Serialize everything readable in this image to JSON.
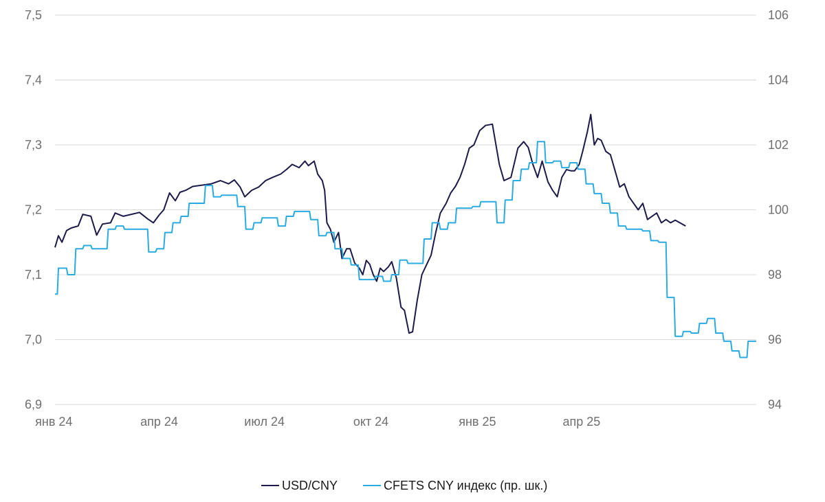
{
  "chart_data": {
    "type": "line",
    "y_left": {
      "ticks": [
        "7,5",
        "7,4",
        "7,3",
        "7,2",
        "7,1",
        "7,0",
        "6,9"
      ],
      "min": 6.9,
      "max": 7.5
    },
    "y_right": {
      "ticks": [
        "106",
        "104",
        "102",
        "100",
        "98",
        "96",
        "94"
      ],
      "min": 94,
      "max": 106
    },
    "x_ticks": [
      "янв 24",
      "апр 24",
      "июл 24",
      "окт 24",
      "янв 25",
      "апр 25"
    ],
    "x_tick_dates": [
      "2024-01-01",
      "2024-04-01",
      "2024-07-01",
      "2024-10-01",
      "2025-01-01",
      "2025-04-01"
    ],
    "grid": true,
    "legend_position": "bottom",
    "series": [
      {
        "name": "USD/CNY",
        "axis": "left",
        "color": "#1b1a48",
        "points": [
          [
            "2024-01-02",
            7.142
          ],
          [
            "2024-01-05",
            7.16
          ],
          [
            "2024-01-08",
            7.15
          ],
          [
            "2024-01-12",
            7.168
          ],
          [
            "2024-01-16",
            7.172
          ],
          [
            "2024-01-22",
            7.175
          ],
          [
            "2024-01-26",
            7.193
          ],
          [
            "2024-02-02",
            7.19
          ],
          [
            "2024-02-07",
            7.161
          ],
          [
            "2024-02-12",
            7.178
          ],
          [
            "2024-02-19",
            7.18
          ],
          [
            "2024-02-23",
            7.195
          ],
          [
            "2024-03-01",
            7.19
          ],
          [
            "2024-03-08",
            7.193
          ],
          [
            "2024-03-15",
            7.196
          ],
          [
            "2024-03-22",
            7.186
          ],
          [
            "2024-03-27",
            7.18
          ],
          [
            "2024-04-01",
            7.192
          ],
          [
            "2024-04-05",
            7.2
          ],
          [
            "2024-04-10",
            7.226
          ],
          [
            "2024-04-15",
            7.214
          ],
          [
            "2024-04-19",
            7.227
          ],
          [
            "2024-04-24",
            7.23
          ],
          [
            "2024-04-30",
            7.236
          ],
          [
            "2024-05-08",
            7.238
          ],
          [
            "2024-05-16",
            7.24
          ],
          [
            "2024-05-24",
            7.245
          ],
          [
            "2024-05-31",
            7.24
          ],
          [
            "2024-06-05",
            7.246
          ],
          [
            "2024-06-10",
            7.235
          ],
          [
            "2024-06-14",
            7.22
          ],
          [
            "2024-06-20",
            7.23
          ],
          [
            "2024-06-26",
            7.235
          ],
          [
            "2024-07-02",
            7.245
          ],
          [
            "2024-07-08",
            7.25
          ],
          [
            "2024-07-15",
            7.255
          ],
          [
            "2024-07-20",
            7.262
          ],
          [
            "2024-07-25",
            7.27
          ],
          [
            "2024-07-31",
            7.265
          ],
          [
            "2024-08-05",
            7.275
          ],
          [
            "2024-08-08",
            7.268
          ],
          [
            "2024-08-13",
            7.275
          ],
          [
            "2024-08-16",
            7.255
          ],
          [
            "2024-08-20",
            7.245
          ],
          [
            "2024-08-22",
            7.23
          ],
          [
            "2024-08-24",
            7.18
          ],
          [
            "2024-08-27",
            7.17
          ],
          [
            "2024-08-30",
            7.15
          ],
          [
            "2024-09-03",
            7.165
          ],
          [
            "2024-09-06",
            7.125
          ],
          [
            "2024-09-10",
            7.14
          ],
          [
            "2024-09-13",
            7.14
          ],
          [
            "2024-09-17",
            7.118
          ],
          [
            "2024-09-21",
            7.11
          ],
          [
            "2024-09-24",
            7.1
          ],
          [
            "2024-09-27",
            7.122
          ],
          [
            "2024-09-30",
            7.116
          ],
          [
            "2024-10-03",
            7.1
          ],
          [
            "2024-10-06",
            7.09
          ],
          [
            "2024-10-09",
            7.11
          ],
          [
            "2024-10-12",
            7.105
          ],
          [
            "2024-10-16",
            7.112
          ],
          [
            "2024-10-19",
            7.12
          ],
          [
            "2024-10-23",
            7.095
          ],
          [
            "2024-10-27",
            7.05
          ],
          [
            "2024-10-30",
            7.045
          ],
          [
            "2024-11-03",
            7.01
          ],
          [
            "2024-11-06",
            7.012
          ],
          [
            "2024-11-10",
            7.06
          ],
          [
            "2024-11-14",
            7.1
          ],
          [
            "2024-11-18",
            7.115
          ],
          [
            "2024-11-22",
            7.13
          ],
          [
            "2024-11-26",
            7.165
          ],
          [
            "2024-11-30",
            7.195
          ],
          [
            "2024-12-05",
            7.21
          ],
          [
            "2024-12-09",
            7.226
          ],
          [
            "2024-12-13",
            7.236
          ],
          [
            "2024-12-17",
            7.25
          ],
          [
            "2024-12-21",
            7.27
          ],
          [
            "2024-12-25",
            7.295
          ],
          [
            "2024-12-29",
            7.3
          ],
          [
            "2025-01-03",
            7.322
          ],
          [
            "2025-01-08",
            7.33
          ],
          [
            "2025-01-14",
            7.332
          ],
          [
            "2025-01-20",
            7.27
          ],
          [
            "2025-01-24",
            7.245
          ],
          [
            "2025-01-30",
            7.25
          ],
          [
            "2025-02-05",
            7.295
          ],
          [
            "2025-02-10",
            7.305
          ],
          [
            "2025-02-14",
            7.296
          ],
          [
            "2025-02-18",
            7.27
          ],
          [
            "2025-02-22",
            7.25
          ],
          [
            "2025-02-26",
            7.275
          ],
          [
            "2025-03-03",
            7.243
          ],
          [
            "2025-03-07",
            7.23
          ],
          [
            "2025-03-11",
            7.22
          ],
          [
            "2025-03-15",
            7.25
          ],
          [
            "2025-03-19",
            7.262
          ],
          [
            "2025-03-23",
            7.26
          ],
          [
            "2025-03-26",
            7.26
          ],
          [
            "2025-03-30",
            7.27
          ],
          [
            "2025-04-02",
            7.29
          ],
          [
            "2025-04-06",
            7.32
          ],
          [
            "2025-04-09",
            7.347
          ],
          [
            "2025-04-12",
            7.3
          ],
          [
            "2025-04-15",
            7.31
          ],
          [
            "2025-04-18",
            7.307
          ],
          [
            "2025-04-22",
            7.29
          ],
          [
            "2025-04-26",
            7.285
          ],
          [
            "2025-04-30",
            7.26
          ],
          [
            "2025-05-04",
            7.235
          ],
          [
            "2025-05-08",
            7.24
          ],
          [
            "2025-05-12",
            7.22
          ],
          [
            "2025-05-16",
            7.21
          ],
          [
            "2025-05-20",
            7.2
          ],
          [
            "2025-05-24",
            7.21
          ],
          [
            "2025-05-28",
            7.185
          ],
          [
            "2025-06-01",
            7.19
          ],
          [
            "2025-06-05",
            7.195
          ],
          [
            "2025-06-09",
            7.18
          ],
          [
            "2025-06-13",
            7.185
          ],
          [
            "2025-06-17",
            7.18
          ],
          [
            "2025-06-21",
            7.184
          ],
          [
            "2025-06-25",
            7.18
          ],
          [
            "2025-06-30",
            7.175
          ]
        ]
      },
      {
        "name": "CFETS CNY индекс (пр. шк.)",
        "axis": "right",
        "color": "#29abe2",
        "points": [
          [
            "2024-01-02",
            97.4
          ],
          [
            "2024-01-04",
            97.4
          ],
          [
            "2024-01-05",
            98.2
          ],
          [
            "2024-01-12",
            98.2
          ],
          [
            "2024-01-13",
            98.0
          ],
          [
            "2024-01-19",
            98.0
          ],
          [
            "2024-01-20",
            98.8
          ],
          [
            "2024-01-26",
            98.8
          ],
          [
            "2024-01-27",
            98.9
          ],
          [
            "2024-02-02",
            98.9
          ],
          [
            "2024-02-03",
            98.8
          ],
          [
            "2024-02-16",
            98.8
          ],
          [
            "2024-02-17",
            99.4
          ],
          [
            "2024-02-23",
            99.4
          ],
          [
            "2024-02-24",
            99.5
          ],
          [
            "2024-03-01",
            99.5
          ],
          [
            "2024-03-02",
            99.4
          ],
          [
            "2024-03-22",
            99.4
          ],
          [
            "2024-03-23",
            98.7
          ],
          [
            "2024-03-29",
            98.7
          ],
          [
            "2024-03-30",
            98.8
          ],
          [
            "2024-04-05",
            98.8
          ],
          [
            "2024-04-06",
            99.3
          ],
          [
            "2024-04-12",
            99.3
          ],
          [
            "2024-04-13",
            99.6
          ],
          [
            "2024-04-19",
            99.6
          ],
          [
            "2024-04-20",
            99.8
          ],
          [
            "2024-04-26",
            99.8
          ],
          [
            "2024-04-27",
            100.2
          ],
          [
            "2024-05-10",
            100.2
          ],
          [
            "2024-05-11",
            100.75
          ],
          [
            "2024-05-17",
            100.75
          ],
          [
            "2024-05-18",
            100.4
          ],
          [
            "2024-05-24",
            100.4
          ],
          [
            "2024-05-25",
            100.45
          ],
          [
            "2024-06-07",
            100.45
          ],
          [
            "2024-06-08",
            100.1
          ],
          [
            "2024-06-14",
            100.1
          ],
          [
            "2024-06-15",
            99.4
          ],
          [
            "2024-06-21",
            99.4
          ],
          [
            "2024-06-22",
            99.6
          ],
          [
            "2024-06-28",
            99.6
          ],
          [
            "2024-06-29",
            99.75
          ],
          [
            "2024-07-12",
            99.75
          ],
          [
            "2024-07-13",
            99.5
          ],
          [
            "2024-07-19",
            99.5
          ],
          [
            "2024-07-20",
            99.8
          ],
          [
            "2024-07-26",
            99.8
          ],
          [
            "2024-07-27",
            99.95
          ],
          [
            "2024-08-09",
            99.95
          ],
          [
            "2024-08-10",
            99.7
          ],
          [
            "2024-08-16",
            99.7
          ],
          [
            "2024-08-17",
            99.2
          ],
          [
            "2024-08-23",
            99.2
          ],
          [
            "2024-08-24",
            99.3
          ],
          [
            "2024-08-30",
            99.3
          ],
          [
            "2024-08-31",
            98.8
          ],
          [
            "2024-09-06",
            98.8
          ],
          [
            "2024-09-07",
            98.5
          ],
          [
            "2024-09-13",
            98.5
          ],
          [
            "2024-09-14",
            98.3
          ],
          [
            "2024-09-20",
            98.3
          ],
          [
            "2024-09-21",
            97.85
          ],
          [
            "2024-10-04",
            97.85
          ],
          [
            "2024-10-05",
            97.95
          ],
          [
            "2024-10-11",
            97.95
          ],
          [
            "2024-10-12",
            97.8
          ],
          [
            "2024-10-18",
            97.8
          ],
          [
            "2024-10-19",
            98.0
          ],
          [
            "2024-10-25",
            98.0
          ],
          [
            "2024-10-26",
            98.45
          ],
          [
            "2024-11-01",
            98.45
          ],
          [
            "2024-11-02",
            98.35
          ],
          [
            "2024-11-15",
            98.35
          ],
          [
            "2024-11-16",
            99.1
          ],
          [
            "2024-11-22",
            99.1
          ],
          [
            "2024-11-23",
            99.6
          ],
          [
            "2024-11-29",
            99.6
          ],
          [
            "2024-11-30",
            99.4
          ],
          [
            "2024-12-06",
            99.4
          ],
          [
            "2024-12-07",
            99.6
          ],
          [
            "2024-12-13",
            99.6
          ],
          [
            "2024-12-14",
            100.05
          ],
          [
            "2024-12-27",
            100.05
          ],
          [
            "2024-12-28",
            100.1
          ],
          [
            "2025-01-03",
            100.1
          ],
          [
            "2025-01-04",
            100.25
          ],
          [
            "2025-01-17",
            100.25
          ],
          [
            "2025-01-18",
            99.6
          ],
          [
            "2025-01-24",
            99.6
          ],
          [
            "2025-01-25",
            100.3
          ],
          [
            "2025-01-31",
            100.3
          ],
          [
            "2025-02-01",
            100.9
          ],
          [
            "2025-02-07",
            100.9
          ],
          [
            "2025-02-08",
            101.25
          ],
          [
            "2025-02-14",
            101.25
          ],
          [
            "2025-02-15",
            101.45
          ],
          [
            "2025-02-21",
            101.45
          ],
          [
            "2025-02-22",
            102.1
          ],
          [
            "2025-02-28",
            102.1
          ],
          [
            "2025-03-01",
            101.45
          ],
          [
            "2025-03-07",
            101.45
          ],
          [
            "2025-03-08",
            101.5
          ],
          [
            "2025-03-14",
            101.5
          ],
          [
            "2025-03-15",
            101.3
          ],
          [
            "2025-03-21",
            101.3
          ],
          [
            "2025-03-22",
            101.45
          ],
          [
            "2025-03-28",
            101.45
          ],
          [
            "2025-03-29",
            101.25
          ],
          [
            "2025-04-04",
            101.25
          ],
          [
            "2025-04-05",
            100.8
          ],
          [
            "2025-04-11",
            100.8
          ],
          [
            "2025-04-12",
            100.5
          ],
          [
            "2025-04-18",
            100.5
          ],
          [
            "2025-04-19",
            100.2
          ],
          [
            "2025-04-25",
            100.2
          ],
          [
            "2025-04-26",
            99.9
          ],
          [
            "2025-05-02",
            99.9
          ],
          [
            "2025-05-03",
            99.5
          ],
          [
            "2025-05-09",
            99.5
          ],
          [
            "2025-05-10",
            99.4
          ],
          [
            "2025-05-23",
            99.4
          ],
          [
            "2025-05-24",
            99.35
          ],
          [
            "2025-05-30",
            99.35
          ],
          [
            "2025-05-31",
            99.05
          ],
          [
            "2025-06-06",
            99.05
          ],
          [
            "2025-06-07",
            99.0
          ],
          [
            "2025-06-13",
            99.0
          ],
          [
            "2025-06-14",
            97.3
          ],
          [
            "2025-06-20",
            97.3
          ],
          [
            "2025-06-21",
            96.1
          ],
          [
            "2025-06-27",
            96.1
          ],
          [
            "2025-06-28",
            96.25
          ],
          [
            "2025-07-04",
            96.25
          ],
          [
            "2025-07-05",
            96.2
          ],
          [
            "2025-07-11",
            96.2
          ],
          [
            "2025-07-12",
            96.5
          ],
          [
            "2025-07-18",
            96.5
          ],
          [
            "2025-07-19",
            96.65
          ],
          [
            "2025-07-25",
            96.65
          ],
          [
            "2025-07-26",
            96.2
          ],
          [
            "2025-08-01",
            96.2
          ],
          [
            "2025-08-02",
            95.95
          ],
          [
            "2025-08-08",
            95.95
          ],
          [
            "2025-08-09",
            95.65
          ],
          [
            "2025-08-15",
            95.65
          ],
          [
            "2025-08-16",
            95.45
          ],
          [
            "2025-08-22",
            95.45
          ],
          [
            "2025-08-23",
            95.95
          ],
          [
            "2025-08-30",
            95.95
          ]
        ]
      }
    ]
  }
}
